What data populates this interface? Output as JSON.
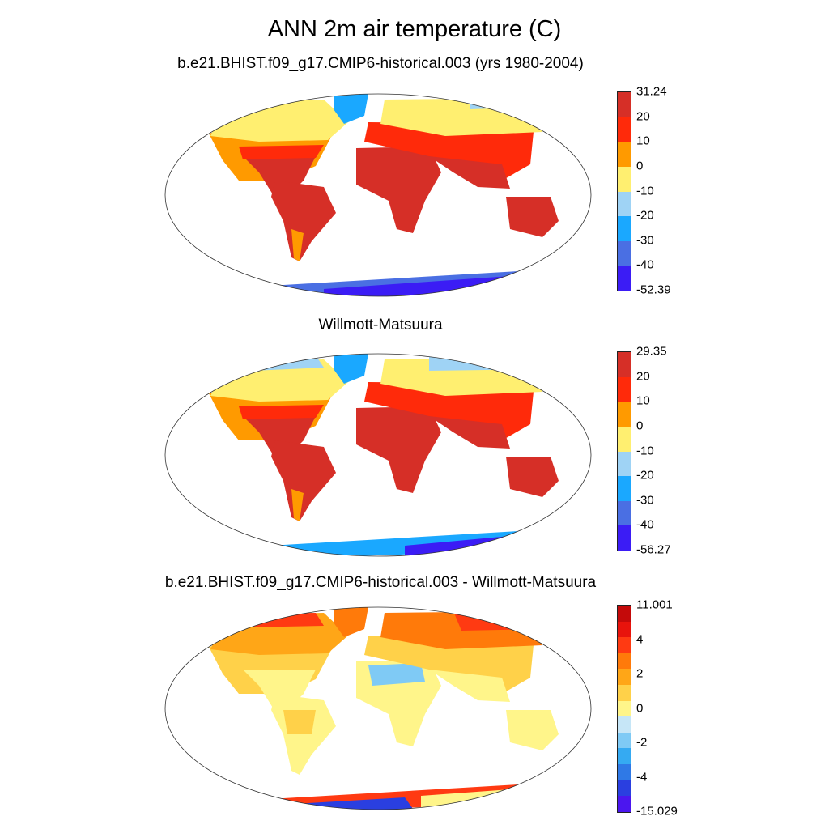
{
  "title": "ANN 2m air temperature (C)",
  "panels": [
    {
      "title": "b.e21.BHIST.f09_g17.CMIP6-historical.003 (yrs 1980-2004)",
      "colorbar": {
        "labels": [
          "31.24",
          "20",
          "10",
          "0",
          "-10",
          "-20",
          "-30",
          "-40",
          "-52.39"
        ],
        "colors": [
          "#d62f27",
          "#ff2a0a",
          "#ff9a00",
          "#ffef70",
          "#9fd3f5",
          "#1aa8ff",
          "#4a6fe3",
          "#3b1cf5"
        ]
      }
    },
    {
      "title": "Willmott-Matsuura",
      "colorbar": {
        "labels": [
          "29.35",
          "20",
          "10",
          "0",
          "-10",
          "-20",
          "-30",
          "-40",
          "-56.27"
        ],
        "colors": [
          "#d62f27",
          "#ff2a0a",
          "#ff9a00",
          "#ffef70",
          "#9fd3f5",
          "#1aa8ff",
          "#4a6fe3",
          "#3b1cf5"
        ]
      }
    },
    {
      "title": "b.e21.BHIST.f09_g17.CMIP6-historical.003 - Willmott-Matsuura",
      "colorbar": {
        "labels": [
          "11.001",
          "",
          "4",
          "",
          "2",
          "",
          "0",
          "",
          "-2",
          "",
          "-4",
          "",
          "-15.029"
        ],
        "colors": [
          "#c40a0a",
          "#e8130c",
          "#ff3a12",
          "#ff7a0a",
          "#ffa617",
          "#ffd149",
          "#fff58a",
          "#c6e6f7",
          "#7fcaf5",
          "#35aaf2",
          "#2f79e6",
          "#2a3fe0",
          "#4b16ef"
        ]
      }
    }
  ]
}
